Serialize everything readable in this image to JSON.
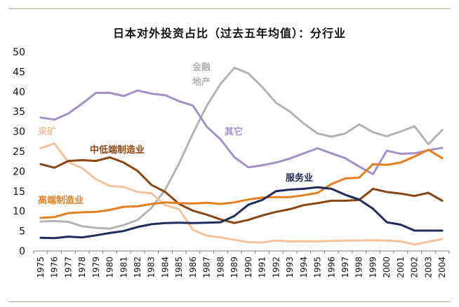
{
  "chart_data": {
    "type": "line",
    "title": "日本对外投资占比（过去五年均值）：分行业",
    "xlabel": "",
    "ylabel": "",
    "ylim": [
      0,
      50
    ],
    "yticks": [
      0,
      5,
      10,
      15,
      20,
      25,
      30,
      35,
      40,
      45,
      50
    ],
    "grid": false,
    "x": [
      "1975",
      "1976",
      "1977",
      "1978",
      "1979",
      "1980",
      "1981",
      "1982",
      "1983",
      "1984",
      "1985",
      "1986",
      "1987",
      "1988",
      "1989",
      "1990",
      "1991",
      "1992",
      "1993",
      "1994",
      "1995",
      "1996",
      "1997",
      "1998",
      "1999",
      "2000",
      "2001",
      "2002",
      "2003",
      "2004"
    ],
    "series": [
      {
        "name": "金融地产",
        "label_lines": [
          "金融",
          "地产"
        ],
        "color": "#b3b3b3",
        "values": [
          7.4,
          7.5,
          7.3,
          6.2,
          5.8,
          5.6,
          6.5,
          7.8,
          10.8,
          15.4,
          22.0,
          29.5,
          36.5,
          42.0,
          46.0,
          44.6,
          41.2,
          37.2,
          35.0,
          32.0,
          29.5,
          28.7,
          29.5,
          31.8,
          29.8,
          28.8,
          30.0,
          31.3,
          26.8,
          30.4
        ]
      },
      {
        "name": "其它",
        "label_lines": [
          "其它"
        ],
        "color": "#a48fc9",
        "values": [
          33.5,
          33.0,
          34.5,
          37.0,
          39.7,
          39.7,
          38.9,
          40.3,
          39.5,
          39.1,
          37.6,
          36.5,
          31.2,
          28.0,
          23.5,
          21.0,
          21.5,
          22.2,
          23.2,
          24.5,
          25.8,
          24.5,
          23.3,
          21.2,
          19.3,
          25.2,
          24.4,
          24.5,
          25.3,
          25.9
        ]
      },
      {
        "name": "采矿",
        "label_lines": [
          "采矿"
        ],
        "color": "#f5c29b",
        "values": [
          25.8,
          27.0,
          22.3,
          20.8,
          18.0,
          16.3,
          16.1,
          14.8,
          14.5,
          11.5,
          10.5,
          5.3,
          3.8,
          3.4,
          2.8,
          2.2,
          2.1,
          2.6,
          2.4,
          2.4,
          2.4,
          2.5,
          2.6,
          2.6,
          2.7,
          2.6,
          2.4,
          1.6,
          2.3,
          3.0
        ]
      },
      {
        "name": "中低端制造业",
        "label_lines": [
          "中低端制造业"
        ],
        "color": "#8b4513",
        "values": [
          21.8,
          20.9,
          22.6,
          22.8,
          22.6,
          23.5,
          22.2,
          20.1,
          16.6,
          14.8,
          11.8,
          10.1,
          9.1,
          7.9,
          7.0,
          7.8,
          8.9,
          9.8,
          10.5,
          11.5,
          12.0,
          12.6,
          12.6,
          12.8,
          15.6,
          14.8,
          14.4,
          13.8,
          14.6,
          12.6
        ]
      },
      {
        "name": "高端制造业",
        "label_lines": [
          "高端制造业"
        ],
        "color": "#e67e22",
        "values": [
          8.3,
          8.5,
          9.5,
          9.7,
          9.8,
          10.3,
          11.1,
          11.2,
          11.8,
          12.2,
          12.0,
          11.9,
          12.1,
          11.8,
          12.2,
          12.9,
          13.4,
          13.5,
          13.5,
          14.0,
          14.6,
          16.8,
          18.2,
          18.4,
          21.8,
          21.6,
          22.2,
          23.7,
          25.4,
          23.3
        ]
      },
      {
        "name": "服务业",
        "label_lines": [
          "服务业"
        ],
        "color": "#1f2d5c",
        "values": [
          3.3,
          3.2,
          3.6,
          3.4,
          3.9,
          4.5,
          5.0,
          6.0,
          6.7,
          7.0,
          7.1,
          7.0,
          7.1,
          7.2,
          8.8,
          11.6,
          12.8,
          15.0,
          15.4,
          15.6,
          16.0,
          15.6,
          14.1,
          12.9,
          10.6,
          7.2,
          6.6,
          5.1,
          5.1,
          5.1
        ]
      }
    ]
  }
}
